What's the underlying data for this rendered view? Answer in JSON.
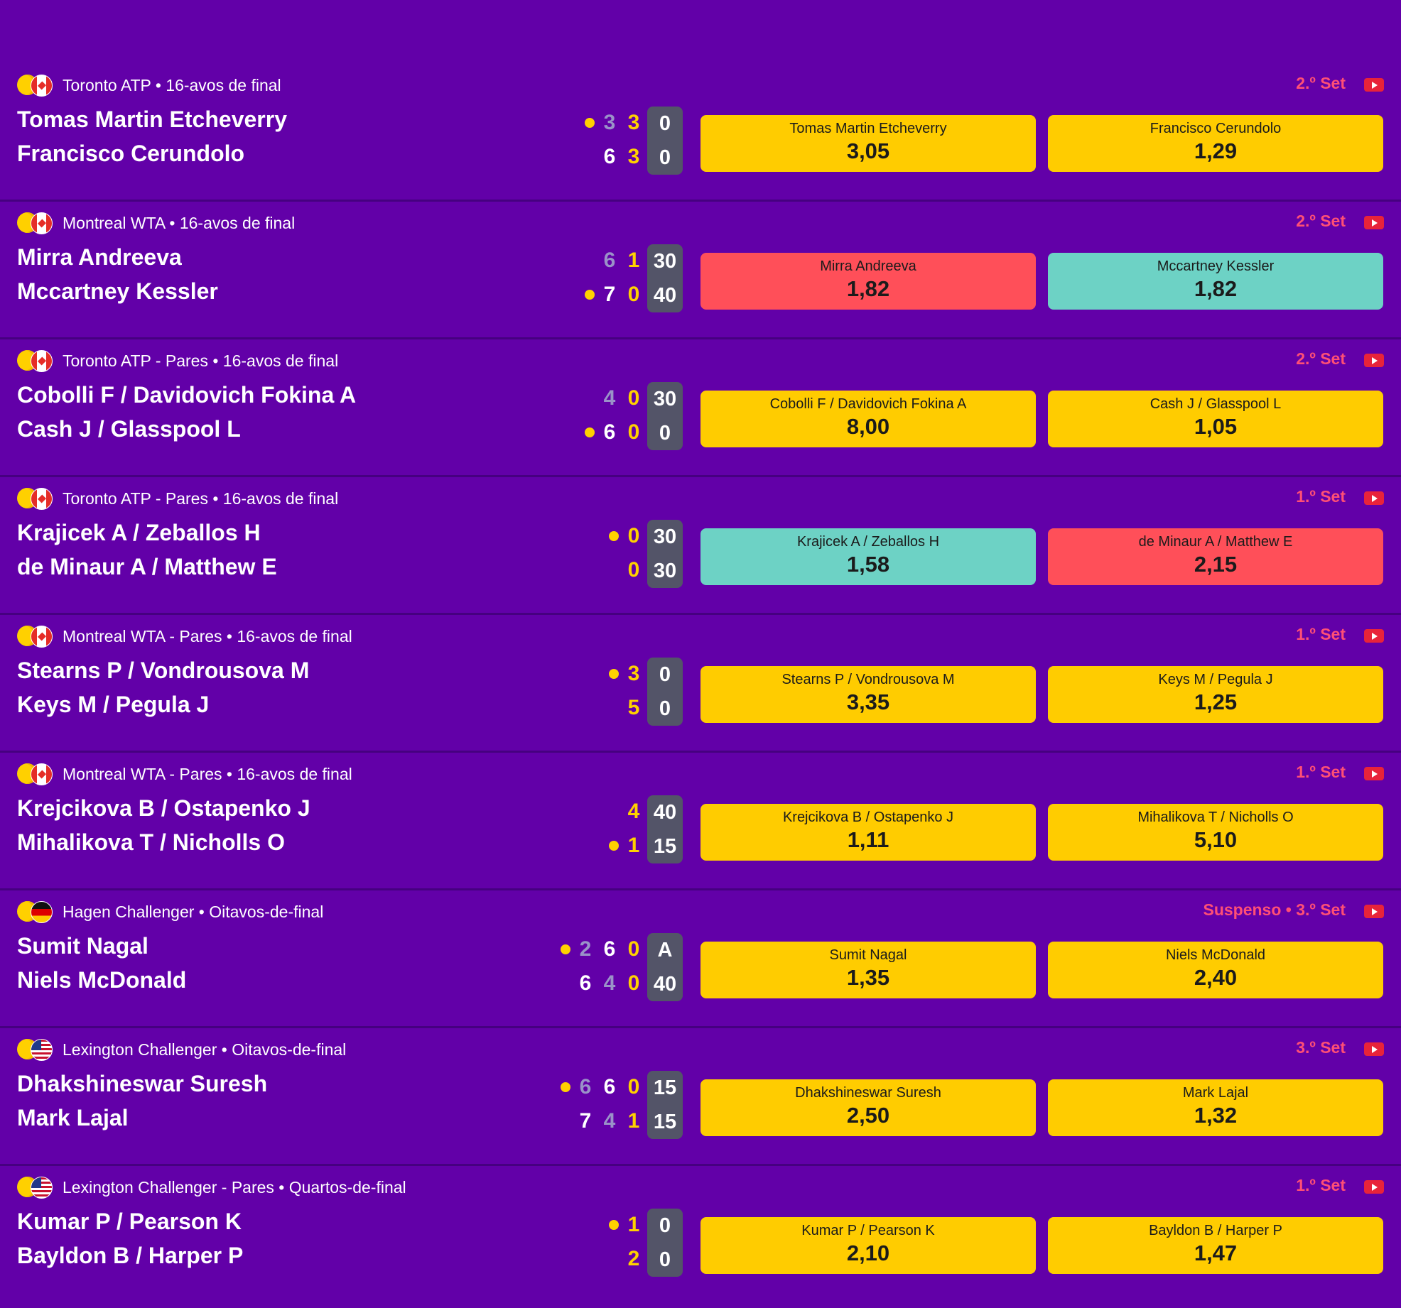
{
  "colors": {
    "background": "#6200a8",
    "odd_neutral": "#ffcc00",
    "odd_down": "#ff4f59",
    "odd_up": "#6dd2c5",
    "status": "#ff4f75",
    "current_set": "#ffd000",
    "point_box": "#535468"
  },
  "matches": [
    {
      "flag": "canada-flag",
      "tournament": "Toronto ATP • 16-avos de final",
      "status": "2.º Set",
      "players": [
        "Tomas Martin Etcheverry",
        "Francisco Cerundolo"
      ],
      "serving": 0,
      "sets": [
        [
          "3",
          "6"
        ],
        [
          "3",
          "3"
        ]
      ],
      "points": [
        "0",
        "0"
      ],
      "odds": [
        {
          "name": "Tomas Martin Etcheverry",
          "price": "3,05",
          "trend": "neutral"
        },
        {
          "name": "Francisco Cerundolo",
          "price": "1,29",
          "trend": "neutral"
        }
      ]
    },
    {
      "flag": "canada-flag",
      "tournament": "Montreal WTA • 16-avos de final",
      "status": "2.º Set",
      "players": [
        "Mirra Andreeva",
        "Mccartney Kessler"
      ],
      "serving": 1,
      "sets": [
        [
          "6",
          "7"
        ],
        [
          "1",
          "0"
        ]
      ],
      "points": [
        "30",
        "40"
      ],
      "odds": [
        {
          "name": "Mirra Andreeva",
          "price": "1,82",
          "trend": "down"
        },
        {
          "name": "Mccartney Kessler",
          "price": "1,82",
          "trend": "up"
        }
      ]
    },
    {
      "flag": "canada-flag",
      "tournament": "Toronto ATP - Pares • 16-avos de final",
      "status": "2.º Set",
      "players": [
        "Cobolli F / Davidovich Fokina A",
        "Cash J / Glasspool L"
      ],
      "serving": 1,
      "sets": [
        [
          "4",
          "6"
        ],
        [
          "0",
          "0"
        ]
      ],
      "points": [
        "30",
        "0"
      ],
      "odds": [
        {
          "name": "Cobolli F / Davidovich Fokina A",
          "price": "8,00",
          "trend": "neutral"
        },
        {
          "name": "Cash J / Glasspool L",
          "price": "1,05",
          "trend": "neutral"
        }
      ]
    },
    {
      "flag": "canada-flag",
      "tournament": "Toronto ATP - Pares • 16-avos de final",
      "status": "1.º Set",
      "players": [
        "Krajicek A / Zeballos H",
        "de Minaur A / Matthew E"
      ],
      "serving": 0,
      "sets": [
        [
          "0",
          "0"
        ]
      ],
      "points": [
        "30",
        "30"
      ],
      "odds": [
        {
          "name": "Krajicek A / Zeballos H",
          "price": "1,58",
          "trend": "up"
        },
        {
          "name": "de Minaur A / Matthew E",
          "price": "2,15",
          "trend": "down"
        }
      ]
    },
    {
      "flag": "canada-flag",
      "tournament": "Montreal WTA - Pares • 16-avos de final",
      "status": "1.º Set",
      "players": [
        "Stearns P / Vondrousova M",
        "Keys M / Pegula J"
      ],
      "serving": 0,
      "sets": [
        [
          "3",
          "5"
        ]
      ],
      "points": [
        "0",
        "0"
      ],
      "odds": [
        {
          "name": "Stearns P / Vondrousova M",
          "price": "3,35",
          "trend": "neutral"
        },
        {
          "name": "Keys M / Pegula J",
          "price": "1,25",
          "trend": "neutral"
        }
      ]
    },
    {
      "flag": "canada-flag",
      "tournament": "Montreal WTA - Pares • 16-avos de final",
      "status": "1.º Set",
      "players": [
        "Krejcikova B / Ostapenko J",
        "Mihalikova T / Nicholls O"
      ],
      "serving": 1,
      "sets": [
        [
          "4",
          "1"
        ]
      ],
      "points": [
        "40",
        "15"
      ],
      "odds": [
        {
          "name": "Krejcikova B / Ostapenko J",
          "price": "1,11",
          "trend": "neutral"
        },
        {
          "name": "Mihalikova T / Nicholls O",
          "price": "5,10",
          "trend": "neutral"
        }
      ]
    },
    {
      "flag": "germany-flag",
      "tournament": "Hagen Challenger • Oitavos-de-final",
      "status": "Suspenso • 3.º Set",
      "players": [
        "Sumit Nagal",
        "Niels McDonald"
      ],
      "serving": 0,
      "sets": [
        [
          "2",
          "6"
        ],
        [
          "6",
          "4"
        ],
        [
          "0",
          "0"
        ]
      ],
      "points": [
        "A",
        "40"
      ],
      "odds": [
        {
          "name": "Sumit Nagal",
          "price": "1,35",
          "trend": "neutral"
        },
        {
          "name": "Niels McDonald",
          "price": "2,40",
          "trend": "neutral"
        }
      ]
    },
    {
      "flag": "usa-flag",
      "tournament": "Lexington Challenger • Oitavos-de-final",
      "status": "3.º Set",
      "players": [
        "Dhakshineswar Suresh",
        "Mark Lajal"
      ],
      "serving": 0,
      "sets": [
        [
          "6",
          "7"
        ],
        [
          "6",
          "4"
        ],
        [
          "0",
          "1"
        ]
      ],
      "points": [
        "15",
        "15"
      ],
      "odds": [
        {
          "name": "Dhakshineswar Suresh",
          "price": "2,50",
          "trend": "neutral"
        },
        {
          "name": "Mark Lajal",
          "price": "1,32",
          "trend": "neutral"
        }
      ]
    },
    {
      "flag": "usa-flag",
      "tournament": "Lexington Challenger - Pares • Quartos-de-final",
      "status": "1.º Set",
      "players": [
        "Kumar P / Pearson K",
        "Bayldon B / Harper P"
      ],
      "serving": 0,
      "sets": [
        [
          "1",
          "2"
        ]
      ],
      "points": [
        "0",
        "0"
      ],
      "odds": [
        {
          "name": "Kumar P / Pearson K",
          "price": "2,10",
          "trend": "neutral"
        },
        {
          "name": "Bayldon B / Harper P",
          "price": "1,47",
          "trend": "neutral"
        }
      ]
    }
  ]
}
